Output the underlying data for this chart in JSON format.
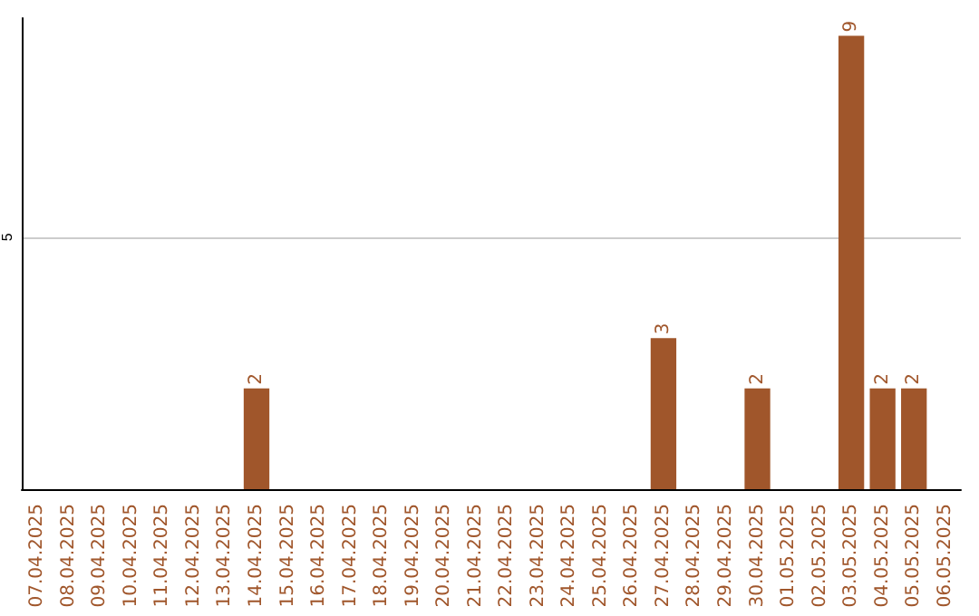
{
  "chart_data": {
    "type": "bar",
    "categories": [
      "07.04.2025",
      "08.04.2025",
      "09.04.2025",
      "10.04.2025",
      "11.04.2025",
      "12.04.2025",
      "13.04.2025",
      "14.04.2025",
      "15.04.2025",
      "16.04.2025",
      "17.04.2025",
      "18.04.2025",
      "19.04.2025",
      "20.04.2025",
      "21.04.2025",
      "22.04.2025",
      "23.04.2025",
      "24.04.2025",
      "25.04.2025",
      "26.04.2025",
      "27.04.2025",
      "28.04.2025",
      "29.04.2025",
      "30.04.2025",
      "01.05.2025",
      "02.05.2025",
      "03.05.2025",
      "04.05.2025",
      "05.05.2025",
      "06.05.2025"
    ],
    "values": [
      0,
      0,
      0,
      0,
      0,
      0,
      0,
      2,
      0,
      0,
      0,
      0,
      0,
      0,
      0,
      0,
      0,
      0,
      0,
      0,
      3,
      0,
      0,
      2,
      0,
      0,
      9,
      2,
      2,
      0
    ],
    "value_labels": [
      null,
      null,
      null,
      null,
      null,
      null,
      null,
      "2",
      null,
      null,
      null,
      null,
      null,
      null,
      null,
      null,
      null,
      null,
      null,
      null,
      "3",
      null,
      null,
      "2",
      null,
      null,
      "9",
      "2",
      "2",
      null
    ],
    "color": "#a0562b",
    "ylim": [
      0,
      9.35
    ],
    "yticks": [
      5
    ],
    "grid": "y"
  }
}
